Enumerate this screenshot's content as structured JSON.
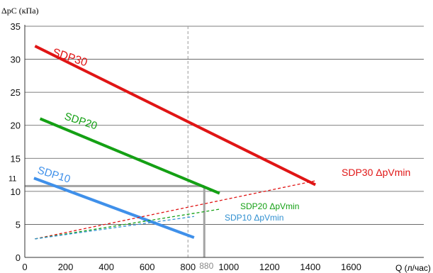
{
  "chart_data": {
    "type": "line",
    "ylabel": "ΔpC (кПа)",
    "xlabel": "Q (л/час)",
    "xlim": [
      0,
      1800
    ],
    "ylim": [
      0,
      35
    ],
    "x_ticks": [
      0,
      200,
      400,
      600,
      800,
      1000,
      1200,
      1400,
      1600
    ],
    "y_ticks": [
      0,
      5,
      10,
      15,
      20,
      25,
      30,
      35
    ],
    "grid": "horizontal",
    "series": [
      {
        "name": "SDP30",
        "style": "solid",
        "color": "#e01515",
        "x": [
          50,
          1425
        ],
        "y": [
          32,
          11
        ]
      },
      {
        "name": "SDP20",
        "style": "solid",
        "color": "#14a014",
        "x": [
          75,
          955
        ],
        "y": [
          21,
          9.7
        ]
      },
      {
        "name": "SDP10",
        "style": "solid",
        "color": "#3f90ea",
        "x": [
          45,
          830
        ],
        "y": [
          12,
          3.0
        ]
      },
      {
        "name": "SDP30 ΔpVmin",
        "style": "dashed",
        "color": "#e01515",
        "x": [
          50,
          1425
        ],
        "y": [
          2.8,
          11.6
        ]
      },
      {
        "name": "SDP20 ΔpVmin",
        "style": "dashed",
        "color": "#14a014",
        "x": [
          50,
          955
        ],
        "y": [
          2.8,
          7.3
        ]
      },
      {
        "name": "SDP10 ΔpVmin",
        "style": "dashed",
        "color": "#2f8fd0",
        "x": [
          50,
          830
        ],
        "y": [
          2.8,
          6.2
        ]
      }
    ],
    "reference": {
      "vertical_dashed_x": 800,
      "marker_x": 880,
      "marker_x_label": "880",
      "marker_y": 10.8,
      "marker_y_label": "11"
    }
  }
}
